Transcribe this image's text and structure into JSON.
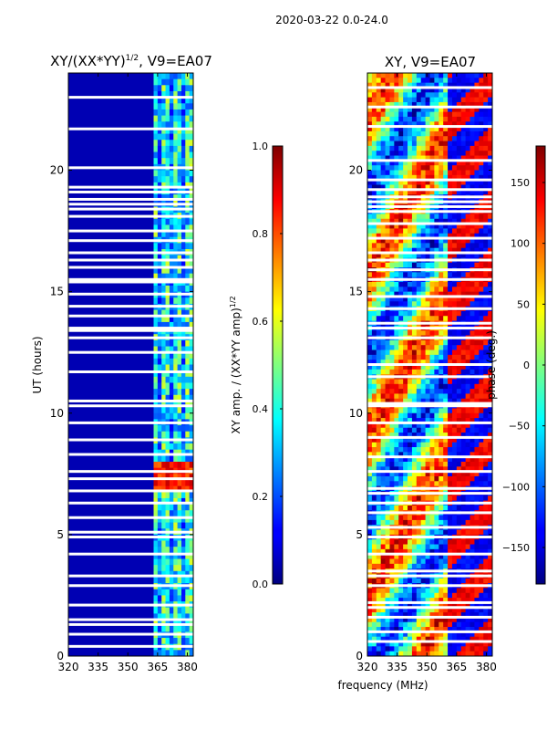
{
  "figure_title": "2020-03-22 0.0-24.0",
  "shared_xlabel": "frequency (MHz)",
  "chart_data": [
    {
      "type": "heatmap",
      "title_main": "XY/(XX*YY)",
      "title_sup": "1/2",
      "title_tail": ", V9=EA07",
      "xlabel": "frequency (MHz)",
      "ylabel": "UT (hours)",
      "xlim": [
        320,
        383
      ],
      "ylim": [
        0,
        24
      ],
      "xticks": [
        320,
        335,
        350,
        365,
        380
      ],
      "yticks": [
        0,
        5,
        10,
        15,
        20
      ],
      "colorbar": {
        "label_main": "XY amp. / (XX*YY amp)",
        "label_sup": "1/2",
        "range": [
          0.0,
          1.0
        ],
        "ticks": [
          "0.0",
          "0.2",
          "0.4",
          "0.6",
          "0.8",
          "1.0"
        ],
        "tick_values": [
          0.0,
          0.2,
          0.4,
          0.6,
          0.8,
          1.0
        ],
        "colormap": "jet"
      },
      "gaps_ut": [
        0.4,
        0.9,
        1.3,
        1.5,
        2.1,
        2.9,
        3.3,
        4.2,
        4.9,
        5.1,
        5.7,
        6.3,
        6.8,
        7.3,
        7.6,
        8.3,
        8.9,
        9.6,
        10.3,
        10.5,
        11.7,
        12.5,
        13.1,
        13.4,
        13.5,
        14.0,
        14.4,
        14.9,
        15.4,
        15.5,
        16.0,
        16.3,
        16.6,
        17.1,
        17.5,
        18.1,
        18.4,
        18.6,
        18.8,
        19.1,
        19.3,
        20.1,
        21.7,
        23.0
      ],
      "features": {
        "background_level": 0.05,
        "band_freq_range_mhz": [
          363,
          383
        ],
        "band_level": 0.4,
        "hot_block_ut": [
          6.8,
          7.9
        ],
        "hot_block_level": 0.95
      }
    },
    {
      "type": "heatmap",
      "title_main": "XY, V9=EA07",
      "xlabel": "frequency (MHz)",
      "xlim": [
        320,
        383
      ],
      "ylim": [
        0,
        24
      ],
      "xticks": [
        320,
        335,
        350,
        365,
        380
      ],
      "yticks": [
        0,
        5,
        10,
        15,
        20
      ],
      "colorbar": {
        "label": "phase (deg.)",
        "range": [
          -180,
          180
        ],
        "ticks": [
          "150",
          "100",
          "50",
          "0",
          "−50",
          "−100",
          "−150"
        ],
        "tick_values": [
          150,
          100,
          50,
          0,
          -50,
          -100,
          -150
        ],
        "colormap": "jet"
      },
      "gaps_ut": [
        0.6,
        1.0,
        1.6,
        2.0,
        2.2,
        2.9,
        3.3,
        3.5,
        4.2,
        4.9,
        5.3,
        5.9,
        6.3,
        6.7,
        6.9,
        7.6,
        8.2,
        9.0,
        9.6,
        10.3,
        10.4,
        11.5,
        12.0,
        13.1,
        13.5,
        13.7,
        14.3,
        14.8,
        15.5,
        15.9,
        16.3,
        16.6,
        17.2,
        17.8,
        18.3,
        18.5,
        18.7,
        18.9,
        19.2,
        19.6,
        20.4,
        21.8,
        22.6,
        23.4
      ]
    }
  ]
}
